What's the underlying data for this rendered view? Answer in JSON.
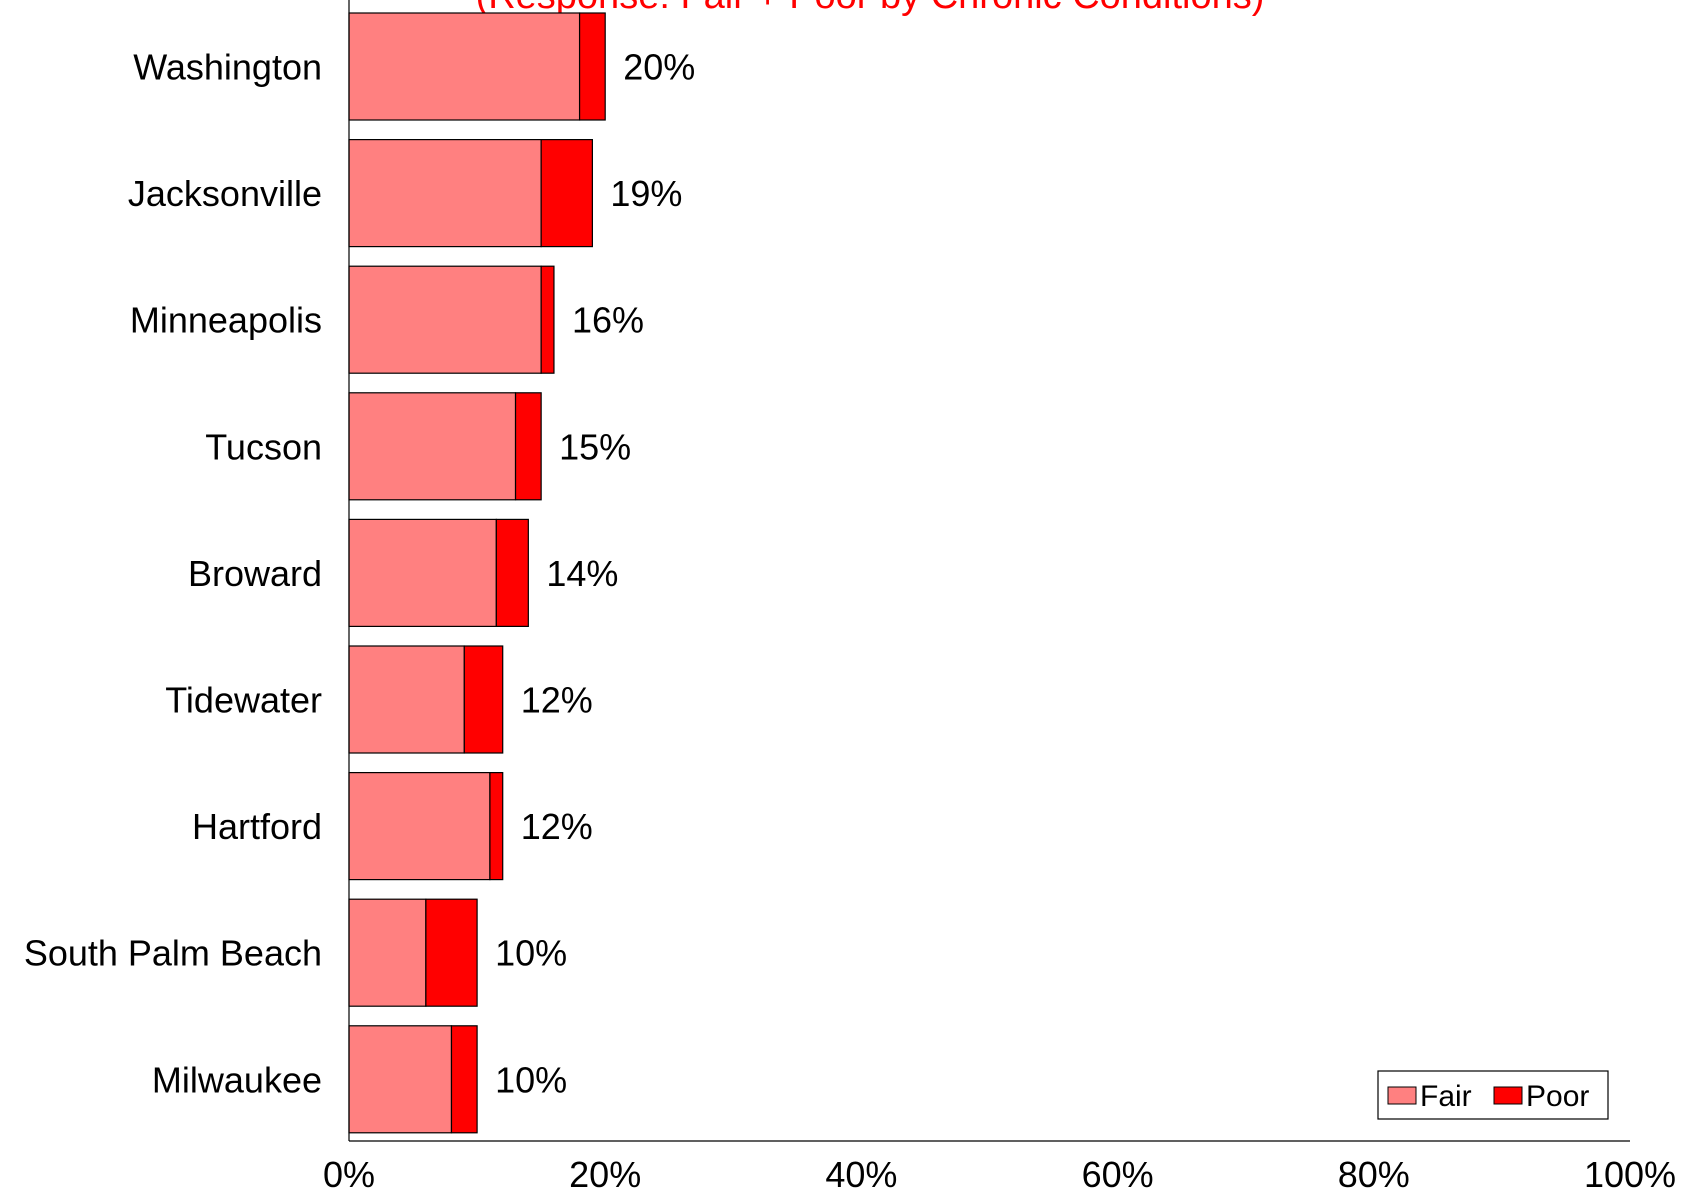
{
  "chart_data": {
    "type": "bar",
    "orientation": "horizontal",
    "stacked": true,
    "title": "(Response: Fair + Poor by Chronic Conditions)",
    "categories": [
      "Washington",
      "Jacksonville",
      "Minneapolis",
      "Tucson",
      "Broward",
      "Tidewater",
      "Hartford",
      "South Palm Beach",
      "Milwaukee"
    ],
    "series": [
      {
        "name": "Fair",
        "color": "#ff8080",
        "values": [
          18,
          15,
          15,
          13,
          11.5,
          9,
          11,
          6,
          8
        ]
      },
      {
        "name": "Poor",
        "color": "#ff0000",
        "values": [
          2,
          4,
          1,
          2,
          2.5,
          3,
          1,
          4,
          2
        ]
      }
    ],
    "total_labels": [
      "20%",
      "19%",
      "16%",
      "15%",
      "14%",
      "12%",
      "12%",
      "10%",
      "10%"
    ],
    "xlim": [
      0,
      100
    ],
    "x_ticks": [
      "0%",
      "20%",
      "40%",
      "60%",
      "80%",
      "100%"
    ],
    "x_tick_values": [
      0,
      20,
      40,
      60,
      80,
      100
    ],
    "grid": false,
    "legend_position": "bottom-right",
    "title_color": "#ff0000"
  }
}
